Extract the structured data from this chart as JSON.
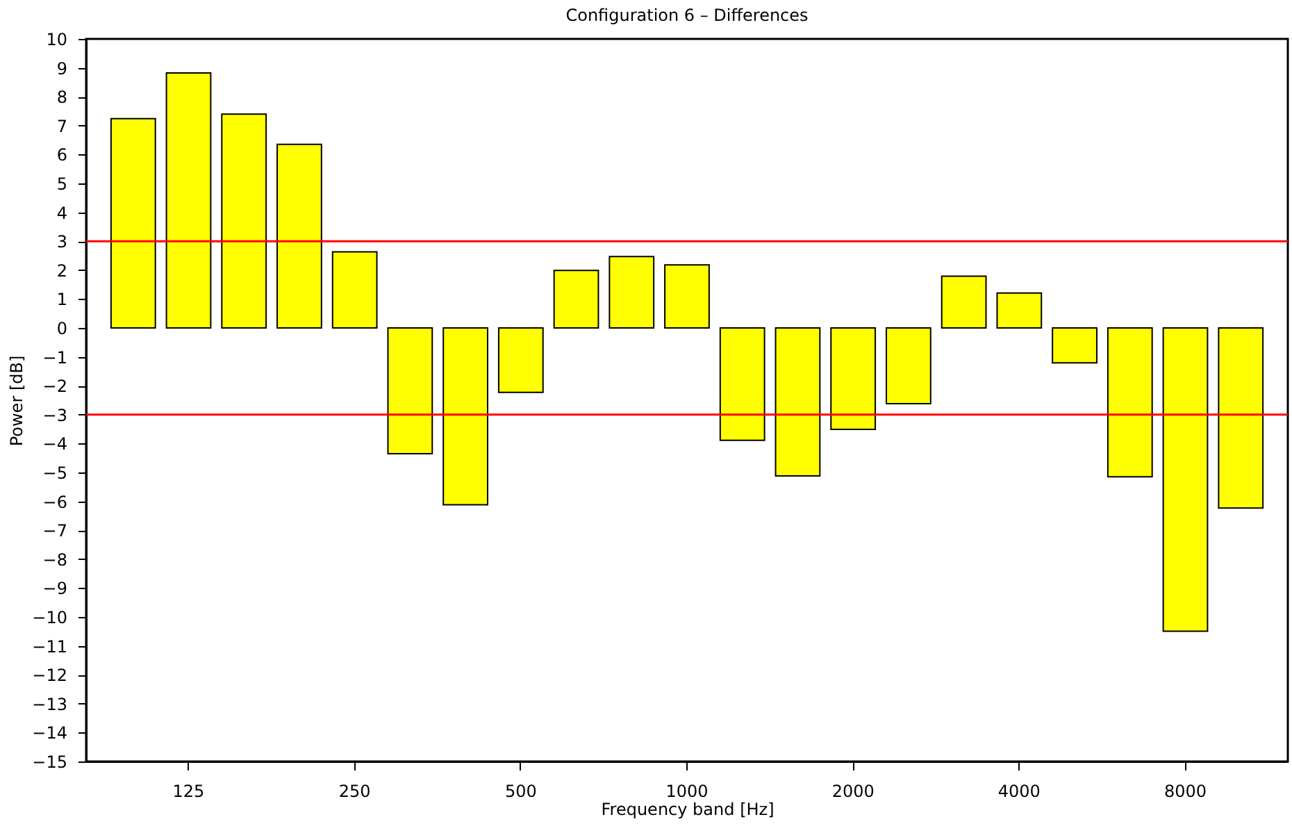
{
  "chart_data": {
    "type": "bar",
    "title": "Configuration 6 – Differences",
    "xlabel": "Frequency band [Hz]",
    "ylabel": "Power [dB]",
    "categories": [
      null,
      "125",
      null,
      null,
      "250",
      null,
      null,
      "500",
      null,
      null,
      "1000",
      null,
      null,
      "2000",
      null,
      null,
      "4000",
      null,
      null,
      "8000",
      null
    ],
    "values": [
      7.24,
      8.82,
      7.4,
      6.35,
      2.63,
      -4.35,
      -6.12,
      -2.23,
      1.99,
      2.47,
      2.18,
      -3.89,
      -5.12,
      -3.51,
      -2.62,
      1.79,
      1.21,
      -1.21,
      -5.15,
      -10.49,
      -6.23
    ],
    "color": "#ffff00",
    "ylim": [
      -15,
      10
    ],
    "yticks": [
      -15,
      -14,
      -13,
      -12,
      -11,
      -10,
      -9,
      -8,
      -7,
      -6,
      -5,
      -4,
      -3,
      -2,
      -1,
      0,
      1,
      2,
      3,
      4,
      5,
      6,
      7,
      8,
      9,
      10
    ],
    "ref_lines": [
      {
        "axis": "y",
        "value": 3,
        "color": "#ff0000"
      },
      {
        "axis": "y",
        "value": -3,
        "color": "#ff0000"
      }
    ],
    "grid": false
  }
}
